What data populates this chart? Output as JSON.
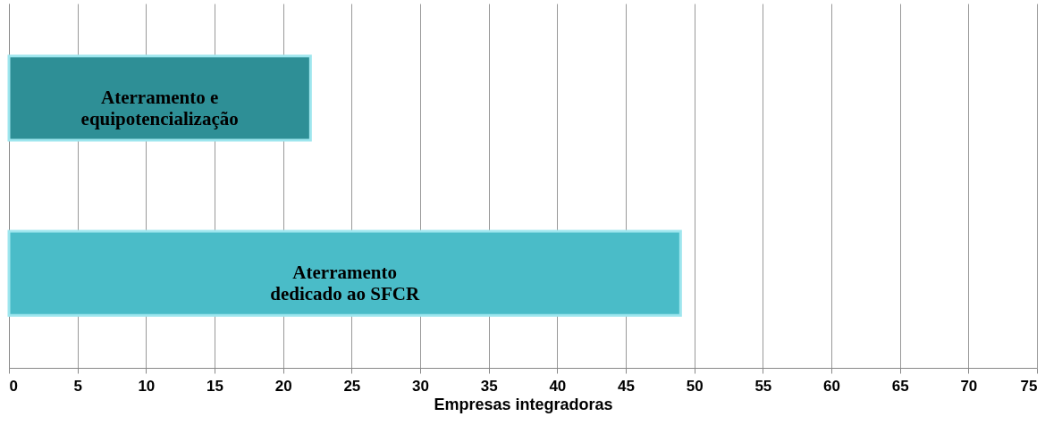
{
  "chart_data": {
    "type": "bar",
    "orientation": "horizontal",
    "categories": [
      "Aterramento e equipotencialização",
      "Aterramento dedicado ao SFCR"
    ],
    "values": [
      22,
      49
    ],
    "colors": [
      "#2e8f96",
      "#4abcc8"
    ],
    "xlabel": "Empresas integradoras",
    "xlim": [
      0,
      75
    ],
    "xticks": [
      0,
      5,
      10,
      15,
      20,
      25,
      30,
      35,
      40,
      45,
      50,
      55,
      60,
      65,
      70,
      75
    ],
    "grid": "x",
    "tick_labels": "x"
  }
}
